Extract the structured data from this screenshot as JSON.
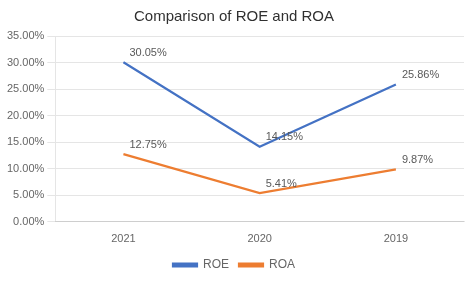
{
  "chart_data": {
    "type": "line",
    "title": "Comparison of ROE and ROA",
    "categories": [
      "2021",
      "2020",
      "2019"
    ],
    "series": [
      {
        "name": "ROE",
        "color": "#4472C4",
        "values": [
          0.3005,
          0.1415,
          0.2586
        ],
        "value_labels": [
          "30.05%",
          "14.15%",
          "25.86%"
        ]
      },
      {
        "name": "ROA",
        "color": "#ED7D31",
        "values": [
          0.1275,
          0.0541,
          0.0987
        ],
        "value_labels": [
          "12.75%",
          "5.41%",
          "9.87%"
        ]
      }
    ],
    "ylim": [
      0.0,
      0.35
    ],
    "yticks": [
      {
        "value": 0.0,
        "label": "0.00%"
      },
      {
        "value": 0.05,
        "label": "5.00%"
      },
      {
        "value": 0.1,
        "label": "10.00%"
      },
      {
        "value": 0.15,
        "label": "15.00%"
      },
      {
        "value": 0.2,
        "label": "20.00%"
      },
      {
        "value": 0.25,
        "label": "25.00%"
      },
      {
        "value": 0.3,
        "label": "30.00%"
      },
      {
        "value": 0.35,
        "label": "35.00%"
      }
    ],
    "grid": true,
    "legend": "bottom",
    "marker": "none",
    "data_labels": true
  }
}
